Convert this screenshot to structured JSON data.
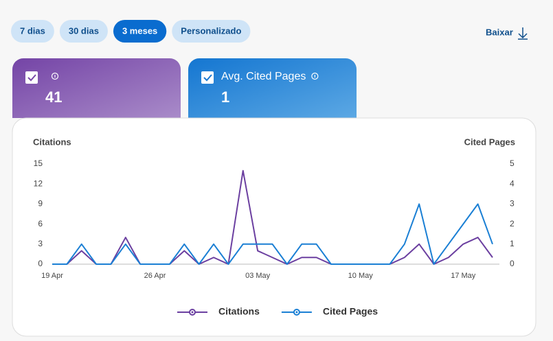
{
  "filters": {
    "options": [
      "7 dias",
      "30 dias",
      "3 meses",
      "Personalizado"
    ],
    "active": 2
  },
  "download": "Baixar",
  "cards": [
    {
      "value": 41,
      "color": "#7a4aa8"
    },
    {
      "label": "Avg. Cited Pages",
      "value": 1,
      "color": "#1a78d2"
    }
  ],
  "chart_data": {
    "type": "line",
    "y_label": "Citations",
    "y2_label": "Cited Pages",
    "categories": [
      "19 Apr",
      null,
      null,
      null,
      null,
      null,
      null,
      "26 Apr",
      null,
      null,
      null,
      null,
      null,
      null,
      "03 May",
      null,
      null,
      null,
      null,
      null,
      null,
      "10 May",
      null,
      null,
      null,
      null,
      null,
      null,
      "17 May",
      null,
      null
    ],
    "series": [
      {
        "name": "Citations",
        "color": "#6b3fa0",
        "values": [
          0,
          0,
          2,
          0,
          0,
          4,
          0,
          0,
          0,
          2,
          0,
          1,
          0,
          14,
          2,
          1,
          0,
          1,
          1,
          0,
          0,
          0,
          0,
          0,
          1,
          3,
          0,
          1,
          3,
          4,
          1
        ]
      },
      {
        "name": "Cited Pages",
        "color": "#1a7fd4",
        "axis": "y2",
        "values": [
          0,
          0,
          1,
          0,
          0,
          1,
          0,
          0,
          0,
          1,
          0,
          1,
          0,
          1,
          1,
          1,
          0,
          1,
          1,
          0,
          0,
          0,
          0,
          0,
          1,
          3,
          0,
          1,
          2,
          3,
          1
        ]
      }
    ],
    "ylim": [
      0,
      15
    ],
    "yticks": [
      0,
      3,
      6,
      9,
      12,
      15
    ],
    "y2lim": [
      0,
      5
    ],
    "y2ticks": [
      0,
      1,
      2,
      3,
      4,
      5
    ],
    "grid": false,
    "legend": "bottom"
  }
}
